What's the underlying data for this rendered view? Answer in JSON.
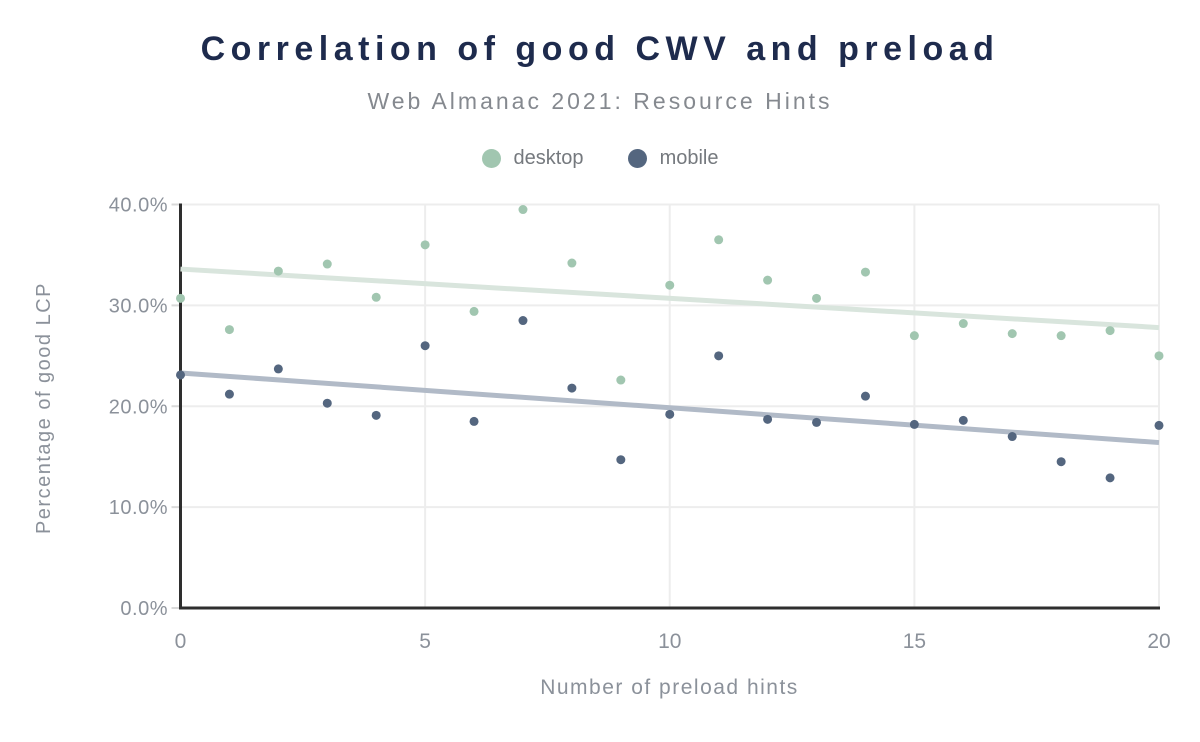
{
  "header": {
    "title": "Correlation of good CWV and preload",
    "subtitle": "Web Almanac 2021: Resource Hints"
  },
  "colors": {
    "title": "#1e2b4d",
    "subtitle": "#85898f",
    "axis_text": "#8b919a",
    "axis_line": "#2e2e2e",
    "gridline": "#ededed",
    "tick_mark": "#d9d9d9",
    "background": "#ffffff"
  },
  "legend": {
    "items": [
      {
        "label": "desktop",
        "color": "#a1c6b0"
      },
      {
        "label": "mobile",
        "color": "#54667f"
      }
    ]
  },
  "chart_data": {
    "type": "scatter",
    "title": "Correlation of good CWV and preload",
    "subtitle": "Web Almanac 2021: Resource Hints",
    "xlabel": "Number of preload hints",
    "ylabel": "Percentage of good LCP",
    "xlim": [
      0,
      20
    ],
    "ylim": [
      0,
      40
    ],
    "x_tick_values": [
      0,
      5,
      10,
      15,
      20
    ],
    "x_tick_labels": [
      "0",
      "5",
      "10",
      "15",
      "20"
    ],
    "y_tick_values": [
      0,
      10,
      20,
      30,
      40
    ],
    "y_tick_labels": [
      "0.0%",
      "10.0%",
      "20.0%",
      "30.0%",
      "40.0%"
    ],
    "grid": true,
    "legend_position": "top",
    "x": [
      0,
      1,
      2,
      3,
      4,
      5,
      6,
      7,
      8,
      9,
      10,
      11,
      12,
      13,
      14,
      15,
      16,
      17,
      18,
      19,
      20
    ],
    "series": [
      {
        "name": "desktop",
        "color": "#a1c6b0",
        "values": [
          30.7,
          27.6,
          33.4,
          34.1,
          30.8,
          36.0,
          29.4,
          39.5,
          34.2,
          22.6,
          32.0,
          36.5,
          32.5,
          30.7,
          33.3,
          27.0,
          28.2,
          27.2,
          27.0,
          27.5,
          25.0
        ],
        "trend": {
          "start": 33.6,
          "end": 27.8,
          "color": "#d9e5dd"
        }
      },
      {
        "name": "mobile",
        "color": "#54667f",
        "values": [
          23.1,
          21.2,
          23.7,
          20.3,
          19.1,
          26.0,
          18.5,
          28.5,
          21.8,
          14.7,
          19.2,
          25.0,
          18.7,
          18.4,
          21.0,
          18.2,
          18.6,
          17.0,
          14.5,
          12.9,
          18.1
        ],
        "trend": {
          "start": 23.3,
          "end": 16.4,
          "color": "#b1bac7"
        }
      }
    ]
  }
}
